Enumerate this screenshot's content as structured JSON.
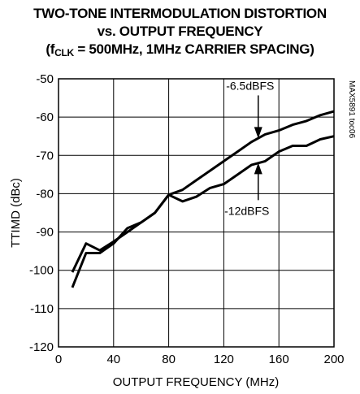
{
  "title": {
    "line1": "TWO-TONE INTERMODULATION DISTORTION",
    "line2": "vs. OUTPUT FREQUENCY",
    "line3_pre": "(f",
    "line3_sub": "CLK",
    "line3_post": " = 500MHz, 1MHz CARRIER SPACING)"
  },
  "chart_data": {
    "type": "line",
    "xlabel": "OUTPUT FREQUENCY (MHz)",
    "ylabel": "TTIMD (dBc)",
    "xlim": [
      0,
      200
    ],
    "ylim": [
      -120,
      -50
    ],
    "x_ticks": [
      0,
      40,
      80,
      120,
      160,
      200
    ],
    "y_ticks": [
      -50,
      -60,
      -70,
      -80,
      -90,
      -100,
      -110,
      -120
    ],
    "grid": true,
    "code_label": "MAX5891 toc06",
    "series": [
      {
        "name": "-6.5dBFS",
        "points": [
          [
            10,
            -100.5
          ],
          [
            20,
            -93
          ],
          [
            30,
            -94.8
          ],
          [
            40,
            -92.5
          ],
          [
            50,
            -90
          ],
          [
            60,
            -87.5
          ],
          [
            70,
            -85
          ],
          [
            80,
            -80.3
          ],
          [
            90,
            -79
          ],
          [
            100,
            -76.5
          ],
          [
            110,
            -74
          ],
          [
            120,
            -71.5
          ],
          [
            130,
            -69
          ],
          [
            140,
            -66.5
          ],
          [
            150,
            -64.5
          ],
          [
            160,
            -63.5
          ],
          [
            170,
            -62
          ],
          [
            180,
            -61
          ],
          [
            190,
            -59.5
          ],
          [
            200,
            -58.5
          ]
        ]
      },
      {
        "name": "-12dBFS",
        "points": [
          [
            10,
            -104.5
          ],
          [
            20,
            -95.5
          ],
          [
            30,
            -95.5
          ],
          [
            40,
            -93
          ],
          [
            50,
            -89
          ],
          [
            60,
            -87.5
          ],
          [
            70,
            -85
          ],
          [
            80,
            -80.3
          ],
          [
            90,
            -82
          ],
          [
            100,
            -80.8
          ],
          [
            110,
            -78.5
          ],
          [
            120,
            -77.5
          ],
          [
            130,
            -75
          ],
          [
            140,
            -72.5
          ],
          [
            150,
            -71.5
          ],
          [
            160,
            -69
          ],
          [
            170,
            -67.5
          ],
          [
            180,
            -67.5
          ],
          [
            190,
            -65.8
          ],
          [
            200,
            -65
          ]
        ]
      }
    ],
    "annotations": [
      {
        "text": "-6.5dBFS",
        "points_to": [
          145,
          -66
        ]
      },
      {
        "text": "-12dBFS",
        "points_to": [
          145,
          -71.5
        ]
      }
    ]
  }
}
